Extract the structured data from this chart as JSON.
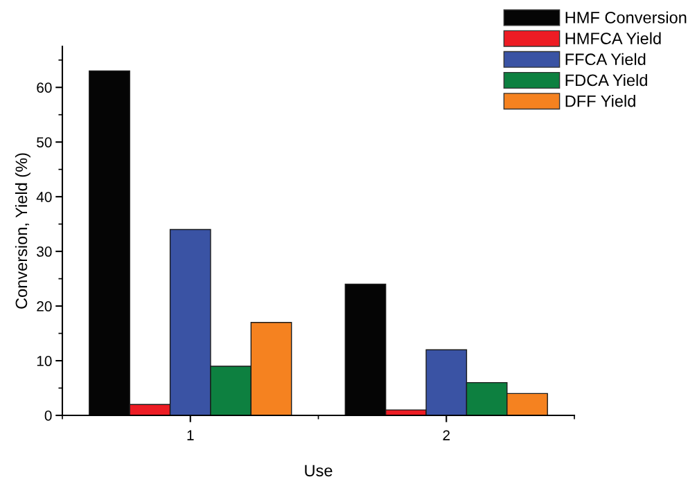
{
  "chart_data": {
    "type": "bar",
    "xlabel": "Use",
    "ylabel": "Conversion, Yield (%)",
    "categories": [
      "1",
      "2"
    ],
    "series": [
      {
        "name": "HMF Conversion",
        "color": "#050505",
        "values": [
          63,
          24
        ]
      },
      {
        "name": "HMFCA Yield",
        "color": "#ed1c24",
        "values": [
          2,
          1
        ]
      },
      {
        "name": "FFCA Yield",
        "color": "#3a53a4",
        "values": [
          34,
          12
        ]
      },
      {
        "name": "FDCA Yield",
        "color": "#0d8040",
        "values": [
          9,
          6
        ]
      },
      {
        "name": "DFF Yield",
        "color": "#f58220",
        "values": [
          17,
          4
        ]
      }
    ],
    "ylim": [
      0,
      67.5
    ],
    "yticks": [
      0,
      10,
      20,
      30,
      40,
      50,
      60
    ],
    "grid": false,
    "legend": "top right"
  }
}
